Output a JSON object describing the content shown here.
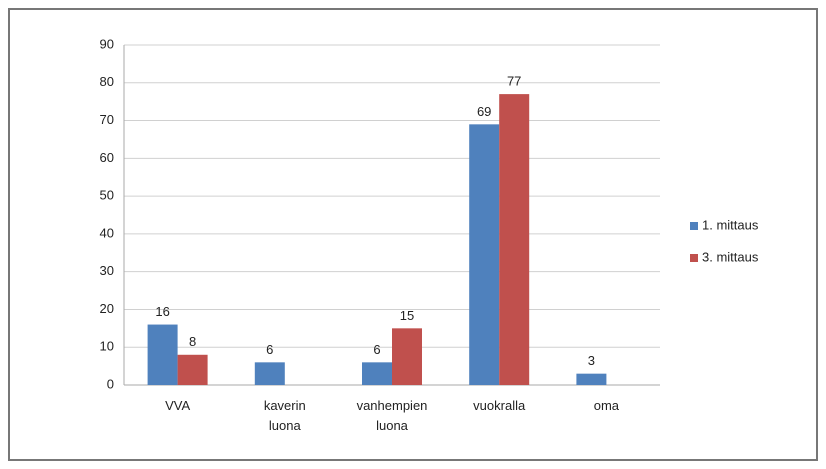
{
  "chart_data": {
    "type": "bar",
    "categories": [
      "VVA",
      "kaverin luona",
      "vanhempien luona",
      "vuokralla",
      "oma"
    ],
    "series": [
      {
        "name": "1. mittaus",
        "color": "#4f81bd",
        "values": [
          16,
          6,
          6,
          69,
          3
        ]
      },
      {
        "name": "3. mittaus",
        "color": "#c0504d",
        "values": [
          8,
          null,
          15,
          77,
          null
        ]
      }
    ],
    "ylim": [
      0,
      90
    ],
    "yticks": [
      0,
      10,
      20,
      30,
      40,
      50,
      60,
      70,
      80,
      90
    ],
    "grid": true,
    "legend": "right"
  }
}
